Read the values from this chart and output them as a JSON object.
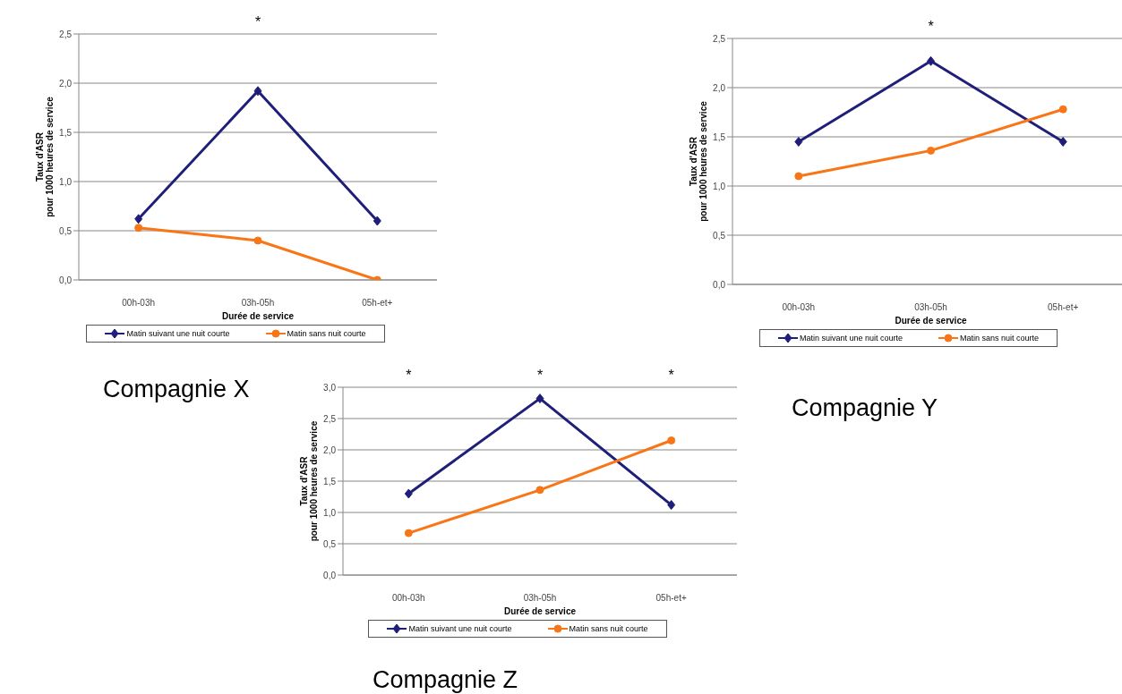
{
  "chart_data": [
    {
      "type": "line",
      "title": "Compagnie X",
      "xlabel": "Durée de service",
      "ylabel": "Taux d'ASR\npour 1000 heures de service",
      "categories": [
        "00h-03h",
        "03h-05h",
        "05h-et+"
      ],
      "series": [
        {
          "name": "Matin suivant une nuit courte",
          "color": "#1f1f7a",
          "marker": "diamond",
          "values": [
            0.62,
            1.92,
            0.6
          ]
        },
        {
          "name": "Matin sans nuit courte",
          "color": "#f87617",
          "marker": "circle",
          "values": [
            0.53,
            0.4,
            0.0
          ]
        }
      ],
      "ylim": [
        0,
        2.5
      ],
      "yticks": [
        {
          "value": 0,
          "label": "0,0"
        },
        {
          "value": 0.5,
          "label": "0,5"
        },
        {
          "value": 1,
          "label": "1,0"
        },
        {
          "value": 1.5,
          "label": "1,5"
        },
        {
          "value": 2,
          "label": "2,0"
        },
        {
          "value": 2.5,
          "label": "2,5"
        }
      ],
      "grid": "y",
      "legend": "bottom",
      "line_style": "solid",
      "annotations": [
        "*"
      ]
    },
    {
      "type": "line",
      "title": "Compagnie Y",
      "xlabel": "Durée de service",
      "ylabel": "Taux d'ASR\npour 1000 heures de service",
      "categories": [
        "00h-03h",
        "03h-05h",
        "05h-et+"
      ],
      "series": [
        {
          "name": "Matin suivant une nuit courte",
          "color": "#1f1f7a",
          "marker": "diamond",
          "values": [
            1.45,
            2.27,
            1.45
          ]
        },
        {
          "name": "Matin sans nuit courte",
          "color": "#f87617",
          "marker": "circle",
          "values": [
            1.1,
            1.36,
            1.78
          ]
        }
      ],
      "ylim": [
        0,
        2.5
      ],
      "yticks": [
        {
          "value": 0,
          "label": "0,0"
        },
        {
          "value": 0.5,
          "label": "0,5"
        },
        {
          "value": 1,
          "label": "1,0"
        },
        {
          "value": 1.5,
          "label": "1,5"
        },
        {
          "value": 2,
          "label": "2,0"
        },
        {
          "value": 2.5,
          "label": "2,5"
        }
      ],
      "grid": "y",
      "legend": "bottom",
      "line_style": "solid",
      "annotations": [
        "*"
      ]
    },
    {
      "type": "line",
      "title": "Compagnie Z",
      "xlabel": "Durée de service",
      "ylabel": "Taux d'ASR\npour 1000 heures de service",
      "categories": [
        "00h-03h",
        "03h-05h",
        "05h-et+"
      ],
      "series": [
        {
          "name": "Matin suivant une nuit courte",
          "color": "#1f1f7a",
          "marker": "diamond",
          "values": [
            1.3,
            2.82,
            1.12
          ]
        },
        {
          "name": "Matin sans nuit courte",
          "color": "#f87617",
          "marker": "circle",
          "values": [
            0.67,
            1.36,
            2.15
          ]
        }
      ],
      "ylim": [
        0,
        3
      ],
      "yticks": [
        {
          "value": 0,
          "label": "0,0"
        },
        {
          "value": 0.5,
          "label": "0,5"
        },
        {
          "value": 1,
          "label": "1,0"
        },
        {
          "value": 1.5,
          "label": "1,5"
        },
        {
          "value": 2,
          "label": "2,0"
        },
        {
          "value": 2.5,
          "label": "2,5"
        },
        {
          "value": 3,
          "label": "3,0"
        }
      ],
      "grid": "y",
      "legend": "bottom",
      "line_style": "solid",
      "annotations": [
        "*",
        "*",
        "*"
      ]
    }
  ]
}
